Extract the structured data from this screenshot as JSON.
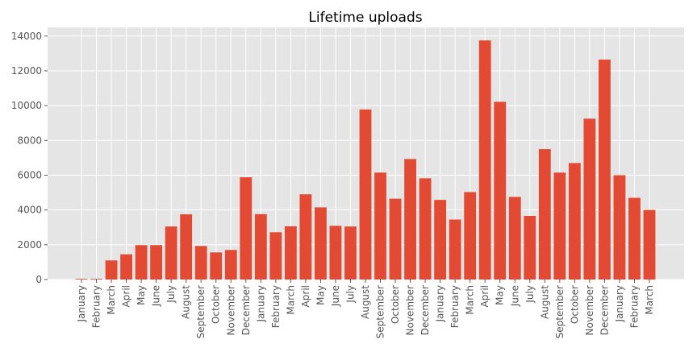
{
  "chart_data": {
    "type": "bar",
    "title": "Lifetime uploads",
    "xlabel": "",
    "ylabel": "",
    "categories": [
      "January",
      "February",
      "March",
      "April",
      "May",
      "June",
      "July",
      "August",
      "September",
      "October",
      "November",
      "December",
      "January",
      "February",
      "March",
      "April",
      "May",
      "June",
      "July",
      "August",
      "September",
      "October",
      "November",
      "December",
      "January",
      "February",
      "March",
      "April",
      "May",
      "June",
      "July",
      "August",
      "September",
      "October",
      "November",
      "December",
      "January",
      "February",
      "March"
    ],
    "values": [
      40,
      40,
      1100,
      1450,
      1980,
      1980,
      3050,
      3750,
      1930,
      1560,
      1700,
      5880,
      3760,
      2720,
      3060,
      4900,
      4150,
      3090,
      3050,
      9780,
      6150,
      4650,
      6930,
      5820,
      4580,
      3450,
      5030,
      13750,
      10220,
      4750,
      3660,
      7500,
      6150,
      6700,
      9250,
      12650,
      6000,
      4700,
      4000
    ],
    "ylim": [
      0,
      14500
    ],
    "yticks": [
      0,
      2000,
      4000,
      6000,
      8000,
      10000,
      12000,
      14000
    ],
    "ytick_labels": [
      "0",
      "2000",
      "4000",
      "6000",
      "8000",
      "10000",
      "12000",
      "14000"
    ],
    "grid": true,
    "colors": {
      "bar": "#E24A33",
      "plot_bg": "#E5E5E5",
      "grid": "#FFFFFF"
    }
  }
}
